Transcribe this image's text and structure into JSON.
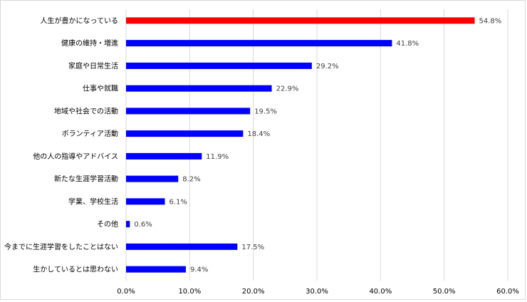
{
  "chart_data": {
    "type": "bar",
    "orientation": "horizontal",
    "categories": [
      "人生が豊かになっている",
      "健康の維持・増進",
      "家庭や日常生活",
      "仕事や就職",
      "地域や社会での活動",
      "ボランティア活動",
      "他の人の指導やアドバイス",
      "新たな生涯学習活動",
      "学業、学校生活",
      "その他",
      "今までに生涯学習をしたことはない",
      "生かしているとは思わない"
    ],
    "values": [
      54.8,
      41.8,
      29.2,
      22.9,
      19.5,
      18.4,
      11.9,
      8.2,
      6.1,
      0.6,
      17.5,
      9.4
    ],
    "value_labels": [
      "54.8%",
      "41.8%",
      "29.2%",
      "22.9%",
      "19.5%",
      "18.4%",
      "11.9%",
      "8.2%",
      "6.1%",
      "0.6%",
      "17.5%",
      "9.4%"
    ],
    "bar_colors": [
      "#ff0000",
      "#0000ff",
      "#0000ff",
      "#0000ff",
      "#0000ff",
      "#0000ff",
      "#0000ff",
      "#0000ff",
      "#0000ff",
      "#0000ff",
      "#0000ff",
      "#0000ff"
    ],
    "x_ticks": [
      0,
      10,
      20,
      30,
      40,
      50,
      60
    ],
    "x_tick_labels": [
      "0.0%",
      "10.0%",
      "20.0%",
      "30.0%",
      "40.0%",
      "50.0%",
      "60.0%"
    ],
    "xlim": [
      0,
      60
    ],
    "title": "",
    "xlabel": "",
    "ylabel": "",
    "grid": "vertical",
    "legend": "none"
  }
}
